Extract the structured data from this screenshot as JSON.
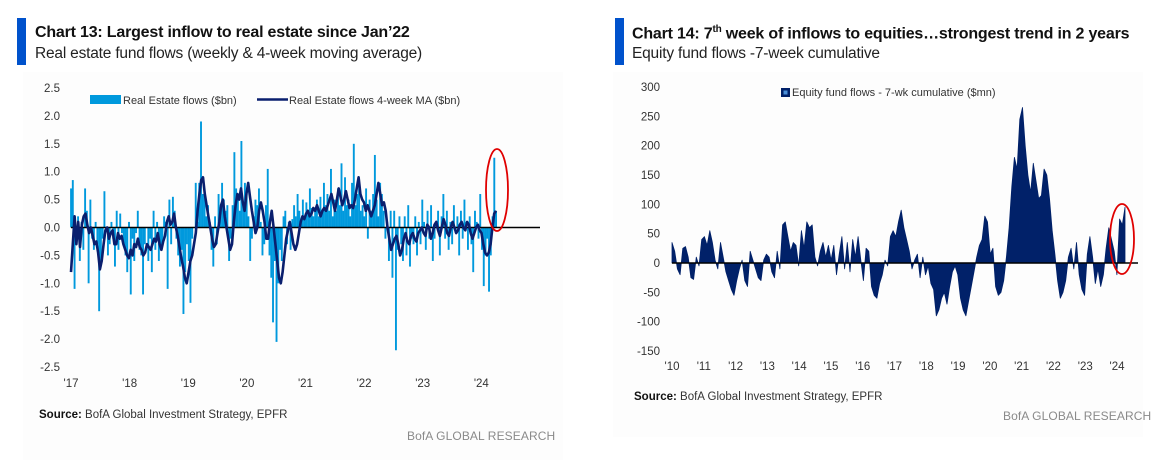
{
  "colors": {
    "accent": "#0052cc",
    "re_bars": "#0099dd",
    "re_ma": "#0a1f6e",
    "eq_area": "#012169",
    "zero_line": "#000000",
    "highlight": "#e00000",
    "brand_text": "#8a8a8a"
  },
  "left": {
    "title": "Chart 13: Largest inflow to real estate since Jan’22",
    "subtitle": "Real estate fund flows (weekly & 4-week moving average)",
    "source_label": "Source:",
    "source_text": " BofA Global Investment Strategy, EPFR",
    "brand": "BofA GLOBAL RESEARCH"
  },
  "right": {
    "title_pre": "Chart 14: 7",
    "title_sup": "th",
    "title_post": " week of inflows to equities…strongest trend in 2 years",
    "subtitle": "Equity fund flows -7-week cumulative",
    "source_label": "Source:",
    "source_text": " BofA Global Investment Strategy, EPFR",
    "brand": "BofA GLOBAL RESEARCH"
  },
  "chart_data": [
    {
      "type": "bar",
      "title": "Real estate fund flows (weekly & 4-week moving average)",
      "xlabel": "",
      "ylabel": "",
      "ylim": [
        -2.5,
        2.5
      ],
      "yticks": [
        "2.5",
        "2.0",
        "1.5",
        "1.0",
        "0.5",
        "0.0",
        "-0.5",
        "-1.0",
        "-1.5",
        "-2.0",
        "-2.5"
      ],
      "ytick_values": [
        2.5,
        2.0,
        1.5,
        1.0,
        0.5,
        0.0,
        -0.5,
        -1.0,
        -1.5,
        -2.0,
        -2.5
      ],
      "xticks": [
        "'17",
        "'18",
        "'19",
        "'20",
        "'21",
        "'22",
        "'23",
        "'24"
      ],
      "x_start_year": 2017,
      "x_end_year": 2024.25,
      "legend": [
        "Real Estate flows ($bn)",
        "Real Estate flows 4-week MA ($bn)"
      ],
      "legend_position": "top",
      "grid": false,
      "annotation": "red ellipse around latest 2024 inflow",
      "series": [
        {
          "name": "Real Estate flows ($bn)",
          "kind": "bar",
          "frequency": "weekly",
          "values": [
            0.7,
            0.85,
            -1.1,
            -0.3,
            0.2,
            -0.6,
            0.1,
            -0.4,
            0.7,
            0.3,
            -1.0,
            0.5,
            -0.2,
            -0.4,
            0.1,
            -0.3,
            -1.5,
            -0.6,
            -0.2,
            0.65,
            0.0,
            -0.5,
            -0.3,
            0.1,
            -0.2,
            -0.7,
            0.3,
            -0.4,
            0.25,
            -0.1,
            -0.3,
            -0.5,
            -0.8,
            0.1,
            -1.2,
            -0.2,
            -0.6,
            -0.1,
            0.3,
            -0.4,
            -0.5,
            -1.2,
            -0.3,
            0.0,
            -0.6,
            -0.2,
            -0.8,
            0.3,
            -0.4,
            0.1,
            -0.6,
            -0.4,
            -0.3,
            0.2,
            0.1,
            -1.1,
            0.5,
            -0.3,
            0.55,
            0.3,
            -0.2,
            -0.5,
            -0.7,
            -0.4,
            -1.55,
            -0.8,
            -0.3,
            -0.6,
            -1.35,
            -0.2,
            0.0,
            0.8,
            0.1,
            0.8,
            1.9,
            0.6,
            0.7,
            0.2,
            0.4,
            0.1,
            -0.4,
            -0.7,
            0.2,
            -0.3,
            0.6,
            0.2,
            0.8,
            0.5,
            0.3,
            0.4,
            -0.6,
            -0.2,
            0.4,
            1.35,
            0.7,
            0.6,
            0.3,
            1.55,
            0.4,
            0.8,
            0.6,
            0.2,
            -0.6,
            -0.2,
            0.2,
            0.5,
            0.4,
            0.7,
            0.1,
            -0.5,
            -0.3,
            0.4,
            1.05,
            -0.5,
            -0.9,
            -1.7,
            -0.6,
            -2.05,
            -1.0,
            -0.4,
            -0.6,
            0.2,
            0.3,
            -0.3,
            0.1,
            -0.4,
            0.15,
            0.4,
            0.2,
            0.6,
            0.3,
            0.1,
            0.5,
            0.2,
            0.45,
            0.3,
            0.7,
            0.35,
            0.2,
            0.3,
            0.5,
            0.2,
            0.55,
            0.3,
            0.8,
            0.4,
            0.6,
            0.3,
            1.05,
            0.2,
            0.5,
            0.3,
            0.7,
            0.4,
            1.15,
            0.3,
            0.9,
            0.4,
            0.5,
            0.2,
            0.8,
            1.5,
            0.4,
            0.6,
            0.8,
            0.3,
            0.4,
            0.2,
            0.7,
            -0.2,
            0.5,
            0.3,
            0.6,
            1.3,
            0.5,
            0.2,
            0.8,
            0.6,
            0.3,
            -0.2,
            0.1,
            -0.6,
            0.3,
            -0.9,
            0.3,
            -2.2,
            -0.4,
            0.2,
            -0.3,
            -0.6,
            0.2,
            -0.5,
            0.4,
            -0.7,
            -0.2,
            -0.3,
            0.2,
            -0.5,
            0.1,
            -0.3,
            0.5,
            0.1,
            -0.4,
            0.3,
            -0.2,
            0.4,
            -0.6,
            -0.2,
            0.1,
            0.3,
            -0.5,
            0.2,
            0.6,
            -0.2,
            0.3,
            -0.4,
            0.1,
            -0.3,
            0.4,
            -0.1,
            0.2,
            -0.5,
            0.3,
            -0.2,
            0.5,
            0.1,
            -0.4,
            0.2,
            -0.3,
            -0.8,
            0.3,
            0.1,
            -0.2,
            0.6,
            -0.4,
            -1.05,
            -0.5,
            -0.2,
            -1.15,
            -0.5,
            0.2,
            1.25,
            0.3
          ]
        },
        {
          "name": "Real Estate flows 4-week MA ($bn)",
          "kind": "line",
          "frequency": "weekly",
          "values": [
            -0.8,
            -0.3,
            0.2,
            -0.3,
            0.1,
            -0.35,
            0.05,
            0.2,
            0.25,
            0.05,
            -0.1,
            0.0,
            -0.15,
            -0.3,
            -0.25,
            -0.45,
            -0.75,
            -0.6,
            -0.3,
            -0.05,
            0.0,
            -0.2,
            -0.1,
            -0.05,
            -0.3,
            -0.3,
            -0.1,
            -0.2,
            -0.15,
            -0.3,
            -0.4,
            -0.5,
            -0.55,
            -0.4,
            -0.5,
            -0.3,
            -0.35,
            -0.2,
            -0.35,
            -0.4,
            -0.5,
            -0.45,
            -0.3,
            -0.35,
            -0.4,
            -0.3,
            -0.2,
            -0.25,
            -0.1,
            -0.3,
            -0.4,
            -0.25,
            -0.15,
            0.1,
            0.2,
            0.05,
            0.1,
            0.25,
            0.0,
            -0.15,
            -0.35,
            -0.55,
            -0.7,
            -0.9,
            -1.0,
            -0.8,
            -0.6,
            -0.5,
            -0.3,
            -0.1,
            0.3,
            0.6,
            0.85,
            0.9,
            0.6,
            0.4,
            0.2,
            0.0,
            -0.2,
            -0.35,
            -0.3,
            -0.1,
            0.1,
            0.4,
            0.5,
            0.2,
            0.0,
            -0.2,
            -0.4,
            -0.3,
            0.1,
            0.4,
            0.6,
            0.5,
            0.7,
            0.45,
            0.3,
            0.6,
            0.8,
            0.55,
            0.3,
            0.1,
            -0.1,
            0.0,
            0.3,
            0.45,
            0.3,
            0.1,
            -0.2,
            -0.2,
            0.1,
            0.3,
            0.0,
            -0.3,
            -0.6,
            -0.9,
            -1.0,
            -0.8,
            -0.5,
            -0.2,
            -0.05,
            0.1,
            -0.1,
            -0.3,
            -0.4,
            -0.3,
            -0.1,
            0.1,
            0.2,
            0.15,
            0.25,
            0.3,
            0.2,
            0.25,
            0.35,
            0.3,
            0.4,
            0.3,
            0.2,
            0.3,
            0.35,
            0.3,
            0.4,
            0.5,
            0.6,
            0.45,
            0.3,
            0.5,
            0.7,
            0.55,
            0.4,
            0.5,
            0.65,
            0.5,
            0.35,
            0.4,
            0.35,
            0.5,
            0.7,
            0.9,
            0.6,
            0.5,
            0.45,
            0.3,
            0.4,
            0.3,
            0.2,
            0.3,
            0.4,
            0.6,
            0.8,
            0.6,
            0.4,
            0.45,
            0.3,
            0.0,
            -0.2,
            -0.4,
            -0.3,
            -0.2,
            -0.15,
            -0.3,
            -0.5,
            -0.4,
            -0.2,
            -0.1,
            -0.25,
            -0.3,
            -0.15,
            -0.1,
            -0.2,
            -0.25,
            -0.1,
            -0.05,
            0.0,
            -0.1,
            -0.15,
            0.05,
            0.0,
            -0.2,
            -0.1,
            0.05,
            0.1,
            -0.05,
            -0.15,
            0.0,
            0.15,
            0.05,
            -0.1,
            -0.15,
            0.0,
            0.1,
            0.0,
            -0.1,
            -0.05,
            0.05,
            0.1,
            0.0,
            -0.05,
            0.1,
            0.05,
            -0.1,
            -0.2,
            -0.1,
            0.0,
            0.05,
            -0.05,
            -0.1,
            -0.3,
            -0.45,
            -0.5,
            -0.45,
            -0.3,
            0.0,
            0.25,
            0.3
          ]
        }
      ]
    },
    {
      "type": "area",
      "title": "Equity fund flows -7-week cumulative",
      "xlabel": "",
      "ylabel": "",
      "ylim": [
        -150,
        300
      ],
      "yticks": [
        "300",
        "250",
        "200",
        "150",
        "100",
        "50",
        "0",
        "-50",
        "-100",
        "-150"
      ],
      "ytick_values": [
        300,
        250,
        200,
        150,
        100,
        50,
        0,
        -50,
        -100,
        -150
      ],
      "xticks": [
        "'10",
        "'11",
        "'12",
        "'13",
        "'14",
        "'15",
        "'16",
        "'17",
        "'18",
        "'19",
        "'20",
        "'21",
        "'22",
        "'23",
        "'24"
      ],
      "x_start_year": 2010,
      "x_end_year": 2024.25,
      "legend": [
        "Equity fund flows - 7-wk cumulative ($mn)"
      ],
      "legend_position": "top-center",
      "grid": false,
      "annotation": "red ellipse around 2024 inflow streak",
      "series": [
        {
          "name": "Equity fund flows - 7-wk cumulative ($mn)",
          "kind": "area",
          "frequency": "biweekly",
          "values": [
            35,
            20,
            -10,
            -20,
            25,
            28,
            10,
            -25,
            -28,
            10,
            -5,
            40,
            45,
            30,
            55,
            35,
            5,
            -10,
            35,
            10,
            -15,
            -30,
            -45,
            -55,
            -30,
            -10,
            5,
            -30,
            -40,
            20,
            5,
            -10,
            -25,
            -30,
            5,
            15,
            10,
            -15,
            -25,
            20,
            -10,
            65,
            70,
            45,
            20,
            35,
            30,
            -5,
            55,
            25,
            70,
            60,
            65,
            10,
            -5,
            20,
            35,
            10,
            30,
            5,
            30,
            -20,
            15,
            45,
            -10,
            35,
            -15,
            40,
            10,
            45,
            5,
            -30,
            25,
            20,
            -40,
            -55,
            -60,
            -35,
            -20,
            5,
            -5,
            45,
            55,
            45,
            70,
            90,
            60,
            40,
            20,
            -10,
            5,
            15,
            -25,
            10,
            -20,
            -5,
            -35,
            -45,
            -90,
            -80,
            -60,
            -50,
            -70,
            -40,
            -15,
            -5,
            -20,
            -60,
            -80,
            -90,
            -65,
            -40,
            -15,
            10,
            30,
            40,
            80,
            70,
            15,
            25,
            -40,
            -55,
            -50,
            -30,
            10,
            60,
            130,
            180,
            160,
            245,
            265,
            200,
            150,
            120,
            170,
            140,
            110,
            115,
            160,
            150,
            110,
            55,
            15,
            -30,
            -60,
            -50,
            -30,
            10,
            25,
            -10,
            35,
            -20,
            -45,
            -55,
            15,
            45,
            10,
            -35,
            -10,
            -40,
            -20,
            25,
            60,
            40,
            20,
            -20,
            75,
            65,
            95
          ]
        }
      ]
    }
  ]
}
